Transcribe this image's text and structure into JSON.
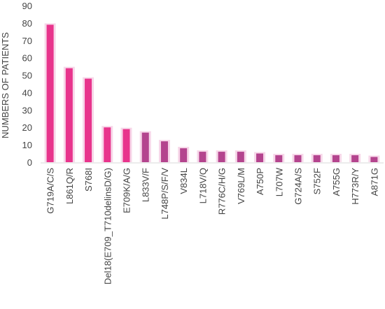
{
  "chart_data": {
    "type": "bar",
    "ylabel": "NUMBERS OF PATIENTS",
    "xlabel": "",
    "ylim": [
      0,
      90
    ],
    "yticks": [
      "0",
      "10",
      "20",
      "30",
      "40",
      "50",
      "60",
      "70",
      "80",
      "90"
    ],
    "grid": false,
    "categories": [
      "G719A/C/S",
      "L861Q/R",
      "S768I",
      "Del18(E709_T710delinsD/G)",
      "E709K/A/G",
      "L833V/F",
      "L748P/S/F/V",
      "V834L",
      "L718V/Q",
      "R776C/H/G",
      "V769L/M",
      "A750P",
      "L707W",
      "G724A/S",
      "S752F",
      "A755G",
      "H773R/Y",
      "A871G"
    ],
    "values": [
      79,
      54,
      48,
      20,
      19,
      17,
      12,
      8,
      6,
      6,
      6,
      5,
      4,
      4,
      4,
      4,
      4,
      3
    ],
    "colors": {
      "bar_bright": "#e8348c",
      "bar_muted": "#b4448e",
      "bar_glow": "#f4c6e0",
      "axis": "#d9d9d9",
      "text": "#444444"
    }
  }
}
